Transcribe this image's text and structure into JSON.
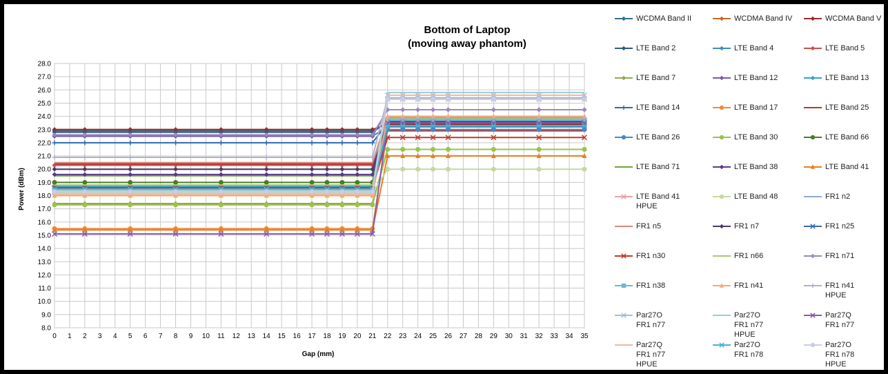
{
  "chart_data": {
    "type": "line",
    "title": "Bottom of Laptop\n(moving away phantom)",
    "xlabel": "Gap (mm)",
    "ylabel": "Power (dBm)",
    "ylim": [
      8.0,
      28.0
    ],
    "ystep": 1.0,
    "categories": [
      "0",
      "1",
      "2",
      "3",
      "4",
      "5",
      "6",
      "7",
      "8",
      "9",
      "10",
      "11",
      "12",
      "13",
      "14",
      "15",
      "16",
      "17",
      "18",
      "19",
      "20",
      "21",
      "22",
      "23",
      "24",
      "25",
      "26",
      "27",
      "28",
      "29",
      "30",
      "31",
      "32",
      "33",
      "34",
      "35"
    ],
    "marker_x": [
      0,
      2,
      5,
      8,
      11,
      14,
      17,
      18,
      19,
      20,
      21,
      22,
      23,
      24,
      25,
      26,
      29,
      32,
      35
    ],
    "grid": true,
    "legend_position": "right",
    "series": [
      {
        "name": "WCDMA Band II",
        "color": "#31708f",
        "marker": "diamond",
        "before": 22.9,
        "after": 23.5
      },
      {
        "name": "WCDMA Band IV",
        "color": "#c0692a",
        "marker": "diamond",
        "before": 23.0,
        "after": 23.4
      },
      {
        "name": "WCDMA Band V",
        "color": "#9c2a2a",
        "marker": "diamond",
        "before": 23.0,
        "after": 23.4
      },
      {
        "name": "LTE Band 2",
        "color": "#2e5a87",
        "marker": "diamond",
        "before": 22.8,
        "after": 23.6
      },
      {
        "name": "LTE Band 4",
        "color": "#3a8fb7",
        "marker": "diamond",
        "before": 22.5,
        "after": 23.2
      },
      {
        "name": "LTE Band 5",
        "color": "#c9504a",
        "marker": "diamond",
        "before": 20.3,
        "after": 23.3
      },
      {
        "name": "LTE Band 7",
        "color": "#8faa4a",
        "marker": "diamond",
        "before": 17.4,
        "after": 21.5
      },
      {
        "name": "LTE Band 12",
        "color": "#7a5aa0",
        "marker": "diamond",
        "before": 22.5,
        "after": 24.5
      },
      {
        "name": "LTE Band 13",
        "color": "#32a3c4",
        "marker": "diamond",
        "before": 18.7,
        "after": 23.3
      },
      {
        "name": "LTE Band 14",
        "color": "#2a6ab0",
        "marker": "plus",
        "before": 22.0,
        "after": 23.5
      },
      {
        "name": "LTE Band 17",
        "color": "#f08c3a",
        "marker": "circle",
        "before": 15.5,
        "after": 23.0
      },
      {
        "name": "LTE Band 25",
        "color": "#b03a2e",
        "marker": "none",
        "before": 20.4,
        "after": 22.9
      },
      {
        "name": "LTE Band 26",
        "color": "#4a86c8",
        "marker": "circle",
        "before": 18.3,
        "after": 23.0
      },
      {
        "name": "LTE Band 30",
        "color": "#9bc24a",
        "marker": "circle",
        "before": 17.3,
        "after": 21.5
      },
      {
        "name": "LTE Band 66",
        "color": "#4f7a28",
        "marker": "circle",
        "before": 19.0,
        "after": 23.8
      },
      {
        "name": "LTE Band 71",
        "color": "#76a03a",
        "marker": "none",
        "before": 19.5,
        "after": 23.7
      },
      {
        "name": "LTE Band 38",
        "color": "#5a3a8a",
        "marker": "diamond",
        "before": 19.6,
        "after": 23.5
      },
      {
        "name": "LTE Band 41",
        "color": "#e67e22",
        "marker": "triangle",
        "before": 15.4,
        "after": 21.0
      },
      {
        "name": "LTE Band 41\nHPUE",
        "color": "#e8a0a8",
        "marker": "x",
        "before": 18.2,
        "after": 25.3
      },
      {
        "name": "LTE Band 48",
        "color": "#c4d8a0",
        "marker": "circle",
        "before": 18.2,
        "after": 20.0
      },
      {
        "name": "FR1 n2",
        "color": "#8fa8d0",
        "marker": "none",
        "before": 20.0,
        "after": 23.9
      },
      {
        "name": "FR1 n5",
        "color": "#d88a80",
        "marker": "none",
        "before": 20.5,
        "after": 24.0
      },
      {
        "name": "FR1 n7",
        "color": "#4a3a6a",
        "marker": "diamond",
        "before": 20.0,
        "after": 23.6
      },
      {
        "name": "FR1 n25",
        "color": "#3a6ab0",
        "marker": "x",
        "before": 18.5,
        "after": 23.7
      },
      {
        "name": "FR1 n30",
        "color": "#c0392b",
        "marker": "x",
        "before": 18.6,
        "after": 22.4
      },
      {
        "name": "FR1 n66",
        "color": "#a8c870",
        "marker": "none",
        "before": 18.8,
        "after": 23.8
      },
      {
        "name": "FR1 n71",
        "color": "#9a88c0",
        "marker": "diamond",
        "before": 22.6,
        "after": 24.5
      },
      {
        "name": "FR1 n38",
        "color": "#6ab8d8",
        "marker": "square",
        "before": 18.4,
        "after": 23.7
      },
      {
        "name": "FR1 n41",
        "color": "#f5a878",
        "marker": "triangle",
        "before": 18.0,
        "after": 24.0
      },
      {
        "name": "FR1 n41\nHPUE",
        "color": "#b0b0c8",
        "marker": "plus",
        "before": 20.9,
        "after": 25.4
      },
      {
        "name": "Par27O\nFR1 n77",
        "color": "#a0c0dc",
        "marker": "x",
        "before": 18.3,
        "after": 25.6
      },
      {
        "name": "Par27O\nFR1 n77\nHPUE",
        "color": "#98ccd8",
        "marker": "none",
        "before": 18.4,
        "after": 25.8
      },
      {
        "name": "Par27Q\nFR1 n77",
        "color": "#8a5aa8",
        "marker": "x",
        "before": 15.1,
        "after": 23.5
      },
      {
        "name": "Par27Q\nFR1 n77\nHPUE",
        "color": "#f0b8a0",
        "marker": "none",
        "before": 18.1,
        "after": 25.6
      },
      {
        "name": "Par27O\nFR1 n78",
        "color": "#4ab0d0",
        "marker": "x",
        "before": 18.5,
        "after": 23.3
      },
      {
        "name": "Par27O\nFR1 n78\nHPUE",
        "color": "#c8cce8",
        "marker": "circle",
        "before": 18.3,
        "after": 25.3
      }
    ]
  }
}
